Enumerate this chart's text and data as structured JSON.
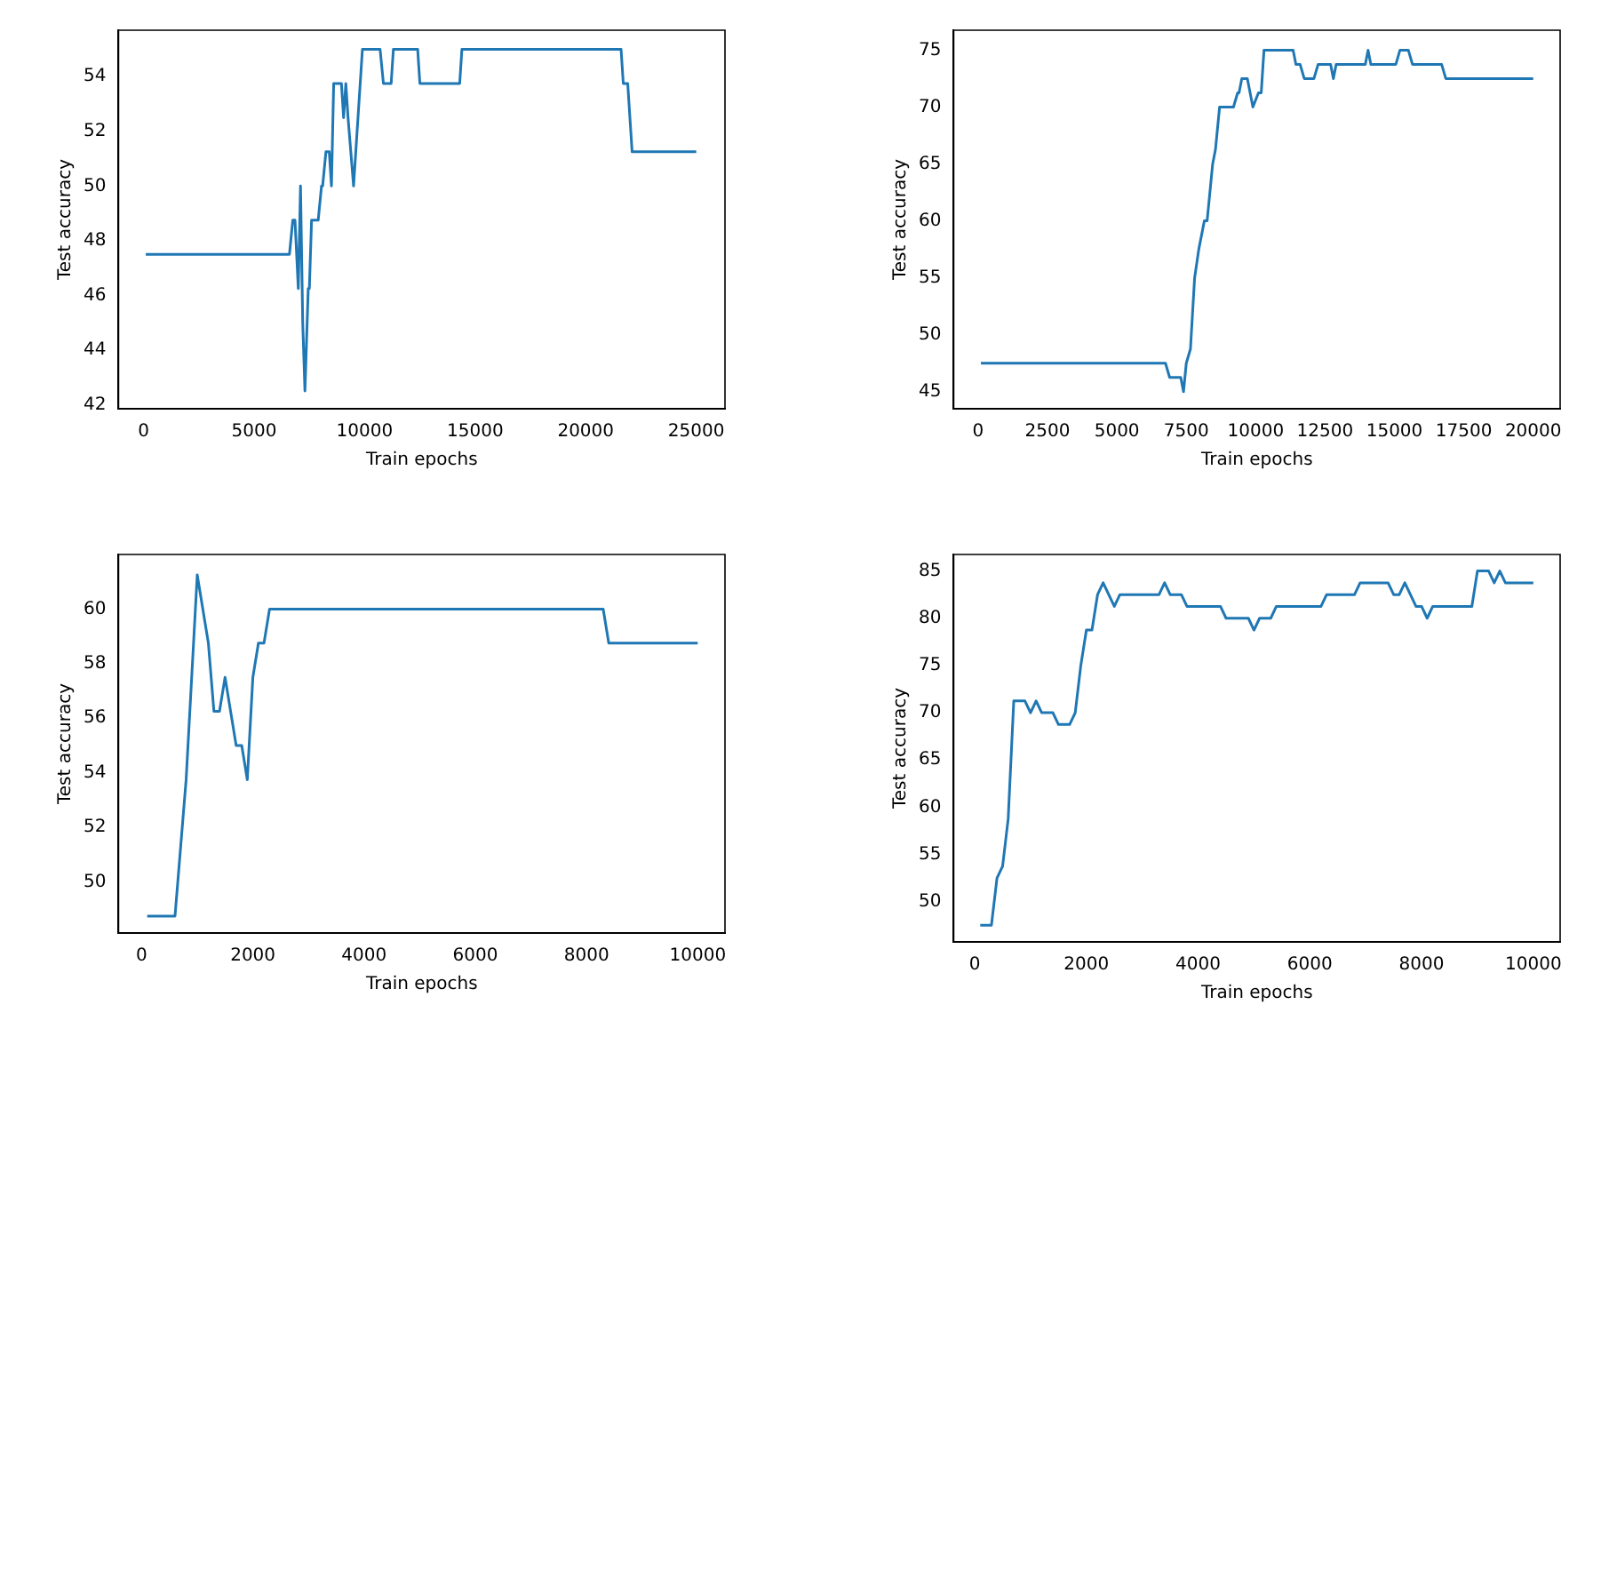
{
  "chart_data": [
    {
      "type": "line",
      "xlabel": "Train epochs",
      "ylabel": "Test accuracy",
      "xlim": [
        -1130,
        26300
      ],
      "ylim": [
        41.85,
        55.7
      ],
      "xticks": [
        0,
        5000,
        10000,
        15000,
        20000,
        25000
      ],
      "yticks": [
        42,
        44,
        46,
        48,
        50,
        52,
        54
      ],
      "color": "#1f77b4",
      "x": [
        100,
        6600,
        6750,
        6850,
        7000,
        7100,
        7200,
        7300,
        7450,
        7500,
        7600,
        7900,
        8050,
        8100,
        8250,
        8400,
        8500,
        8600,
        8950,
        9050,
        9150,
        9250,
        9500,
        9700,
        9900,
        10700,
        10850,
        11200,
        11300,
        12400,
        12500,
        14300,
        14400,
        21600,
        21700,
        21900,
        22100,
        25000
      ],
      "values": [
        47.5,
        47.5,
        48.75,
        48.75,
        46.25,
        50,
        45,
        42.5,
        46.25,
        46.25,
        48.75,
        48.75,
        50,
        50,
        51.25,
        51.25,
        50,
        53.75,
        53.75,
        52.5,
        53.75,
        52.5,
        50,
        52.5,
        55,
        55,
        53.75,
        53.75,
        55,
        55,
        53.75,
        53.75,
        55,
        55,
        53.75,
        53.75,
        51.25,
        51.25
      ]
    },
    {
      "type": "line",
      "xlabel": "Train epochs",
      "ylabel": "Test accuracy",
      "xlim": [
        -880,
        20970
      ],
      "ylim": [
        43.5,
        76.75
      ],
      "xticks": [
        0,
        2500,
        5000,
        7500,
        10000,
        12500,
        15000,
        17500,
        20000
      ],
      "yticks": [
        45,
        50,
        55,
        60,
        65,
        70,
        75
      ],
      "color": "#1f77b4",
      "x": [
        100,
        6750,
        6900,
        7300,
        7400,
        7500,
        7650,
        7800,
        7950,
        8150,
        8250,
        8350,
        8450,
        8550,
        8600,
        8700,
        9200,
        9350,
        9400,
        9500,
        9700,
        9900,
        9950,
        10100,
        10200,
        10300,
        11350,
        11450,
        11600,
        11750,
        12100,
        12250,
        12700,
        12800,
        12900,
        13950,
        14050,
        14150,
        15050,
        15200,
        15500,
        15650,
        16700,
        16850,
        20000
      ],
      "values": [
        47.5,
        47.5,
        46.25,
        46.25,
        45,
        47.5,
        48.75,
        55,
        57.5,
        60,
        60,
        62.5,
        65,
        66.25,
        66.25,
        70,
        70,
        71.25,
        71.25,
        72.5,
        72.5,
        70,
        70,
        71.25,
        71.25,
        75,
        75,
        73.75,
        73.75,
        72.5,
        72.5,
        73.75,
        73.75,
        72.5,
        73.75,
        73.75,
        75,
        73.75,
        73.75,
        75,
        75,
        73.75,
        73.75,
        72.5,
        72.5
      ]
    },
    {
      "type": "line",
      "xlabel": "Train epochs",
      "ylabel": "Test accuracy",
      "xlim": [
        -415,
        10490
      ],
      "ylim": [
        48.13,
        62
      ],
      "xticks": [
        0,
        2000,
        4000,
        6000,
        8000,
        10000
      ],
      "yticks": [
        50,
        52,
        54,
        56,
        58,
        60
      ],
      "color": "#1f77b4",
      "x": [
        100,
        600,
        800,
        1000,
        1200,
        1300,
        1400,
        1500,
        1700,
        1800,
        1900,
        2000,
        2100,
        2200,
        2300,
        8300,
        8400,
        10000
      ],
      "values": [
        48.75,
        48.75,
        53.75,
        61.25,
        58.75,
        56.25,
        56.25,
        57.5,
        55,
        55,
        53.75,
        57.5,
        58.75,
        58.75,
        60,
        60,
        58.75,
        58.75
      ]
    },
    {
      "type": "line",
      "xlabel": "Train epochs",
      "ylabel": "Test accuracy",
      "xlim": [
        -375,
        10480
      ],
      "ylim": [
        45.74,
        86.75
      ],
      "xticks": [
        0,
        2000,
        4000,
        6000,
        8000,
        10000
      ],
      "yticks": [
        50,
        55,
        60,
        65,
        70,
        75,
        80,
        85
      ],
      "color": "#1f77b4",
      "x": [
        100,
        300,
        400,
        500,
        600,
        700,
        900,
        1000,
        1100,
        1200,
        1400,
        1500,
        1700,
        1800,
        1900,
        2000,
        2100,
        2200,
        2300,
        2400,
        2500,
        2600,
        3300,
        3400,
        3500,
        3700,
        3800,
        4400,
        4500,
        4900,
        5000,
        5100,
        5300,
        5400,
        6200,
        6300,
        6800,
        6900,
        7400,
        7500,
        7600,
        7700,
        7900,
        8000,
        8100,
        8200,
        8900,
        9000,
        9200,
        9300,
        9400,
        9500,
        10000
      ],
      "values": [
        47.5,
        47.5,
        52.5,
        53.75,
        58.75,
        71.25,
        71.25,
        70,
        71.25,
        70,
        70,
        68.75,
        68.75,
        70,
        75,
        78.75,
        78.75,
        82.5,
        83.75,
        82.5,
        81.25,
        82.5,
        82.5,
        83.75,
        82.5,
        82.5,
        81.25,
        81.25,
        80,
        80,
        78.75,
        80,
        80,
        81.25,
        81.25,
        82.5,
        82.5,
        83.75,
        83.75,
        82.5,
        82.5,
        83.75,
        81.25,
        81.25,
        80,
        81.25,
        81.25,
        85,
        85,
        83.75,
        85,
        83.75,
        83.75
      ]
    }
  ]
}
